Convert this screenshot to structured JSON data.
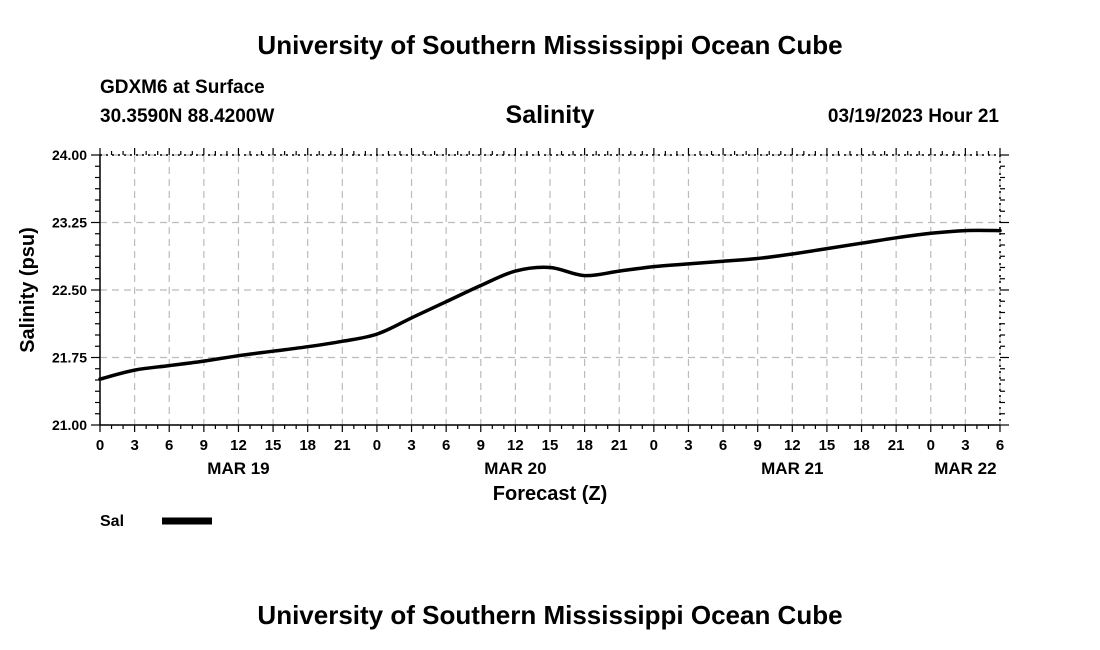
{
  "header": {
    "title": "University of Southern Mississippi Ocean Cube",
    "station": "GDXM6 at Surface",
    "coords": "30.3590N  88.4200W",
    "variable": "Salinity",
    "datetime": "03/19/2023 Hour 21"
  },
  "footer": {
    "title": "University of Southern Mississippi Ocean Cube"
  },
  "chart_data": {
    "type": "line",
    "title": "Salinity",
    "xlabel": "Forecast (Z)",
    "ylabel": "Salinity (psu)",
    "x_unit": "hours since MAR 19 00Z",
    "xlim": [
      0,
      78
    ],
    "ylim": [
      21.0,
      24.0
    ],
    "grid": true,
    "y_ticks": [
      21.0,
      21.75,
      22.5,
      23.25,
      24.0
    ],
    "y_tick_labels": [
      "21.00",
      "21.75",
      "22.50",
      "23.25",
      "24.00"
    ],
    "x_ticks": [
      0,
      3,
      6,
      9,
      12,
      15,
      18,
      21,
      24,
      27,
      30,
      33,
      36,
      39,
      42,
      45,
      48,
      51,
      54,
      57,
      60,
      63,
      66,
      69,
      72,
      75,
      78
    ],
    "x_tick_labels": [
      "0",
      "3",
      "6",
      "9",
      "12",
      "15",
      "18",
      "21",
      "0",
      "3",
      "6",
      "9",
      "12",
      "15",
      "18",
      "21",
      "0",
      "3",
      "6",
      "9",
      "12",
      "15",
      "18",
      "21",
      "0",
      "3",
      "6"
    ],
    "date_labels": [
      {
        "x": 12,
        "label": "MAR 19"
      },
      {
        "x": 36,
        "label": "MAR 20"
      },
      {
        "x": 60,
        "label": "MAR 21"
      },
      {
        "x": 75,
        "label": "MAR 22"
      }
    ],
    "legend": {
      "placement": "bottom-left",
      "entries": [
        {
          "name": "Sal",
          "color": "#000000"
        }
      ]
    },
    "series": [
      {
        "name": "Sal",
        "color": "#000000",
        "x": [
          0,
          3,
          6,
          9,
          12,
          15,
          18,
          21,
          24,
          27,
          30,
          33,
          36,
          39,
          42,
          45,
          48,
          51,
          54,
          57,
          60,
          63,
          66,
          69,
          72,
          75,
          78
        ],
        "values": [
          21.51,
          21.61,
          21.66,
          21.71,
          21.77,
          21.82,
          21.87,
          21.93,
          22.01,
          22.19,
          22.37,
          22.55,
          22.71,
          22.75,
          22.66,
          22.71,
          22.76,
          22.79,
          22.82,
          22.85,
          22.9,
          22.96,
          23.02,
          23.08,
          23.13,
          23.16,
          23.16
        ]
      }
    ]
  }
}
